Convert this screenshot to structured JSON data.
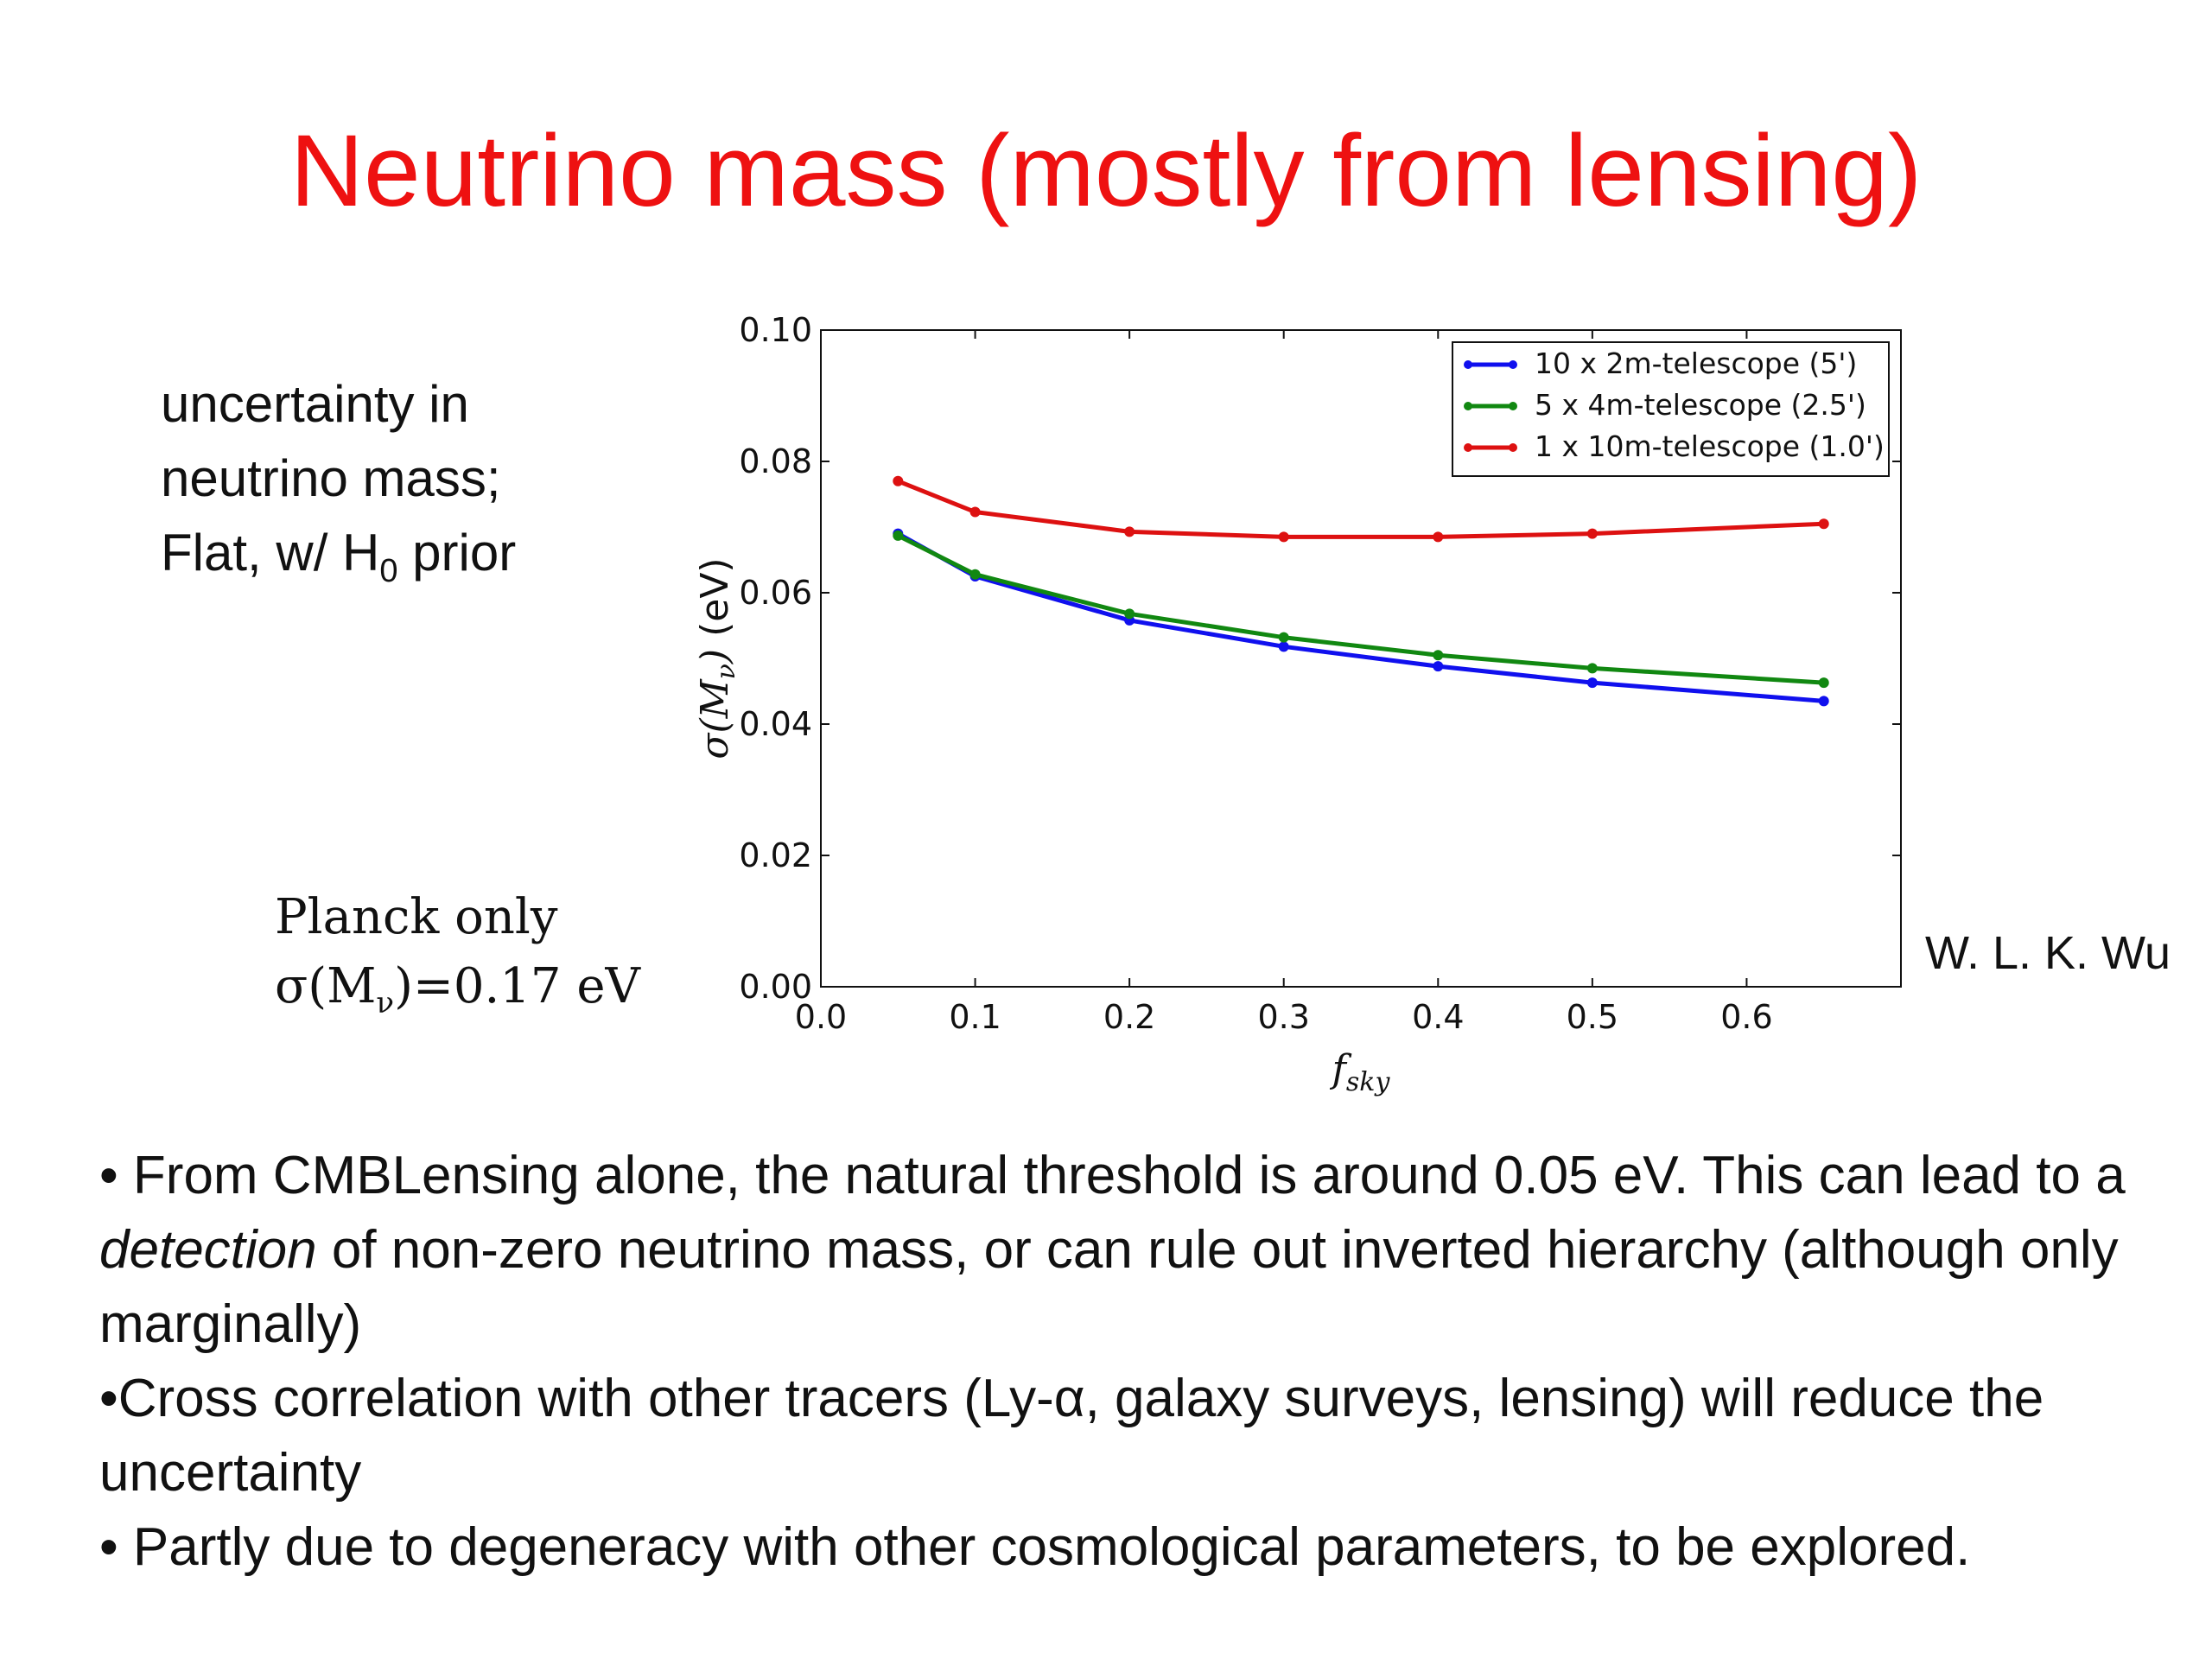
{
  "slide": {
    "title": "Neutrino mass (mostly from lensing)",
    "side_text": {
      "line1": "uncertainty in",
      "line2": "neutrino mass;",
      "line3_pre": "Flat, w/ H",
      "line3_sub": "0",
      "line3_post": " prior"
    },
    "planck": {
      "line1": "Planck only",
      "line2_pre": "σ(M",
      "line2_sub": "ν",
      "line2_post": ")=0.17 eV"
    },
    "credit": "W. L. K. Wu",
    "bullets": {
      "b1_pre": "• From CMBLensing alone, the natural threshold is around 0.05 eV.  This can lead to a ",
      "b1_em": "detection",
      "b1_post": " of non-zero neutrino mass, or can rule out inverted hierarchy (although only marginally)",
      "b2": "•Cross correlation with other tracers (Ly-α, galaxy surveys, lensing) will reduce the uncertainty",
      "b3": "• Partly due to degeneracy with other cosmological parameters, to be explored."
    }
  },
  "chart_data": {
    "type": "line",
    "xlabel": "f_sky",
    "ylabel": "σ(M_ν) (eV)",
    "xlim": [
      0.0,
      0.7
    ],
    "ylim": [
      0.0,
      0.1
    ],
    "xticks": [
      "0.0",
      "0.1",
      "0.2",
      "0.3",
      "0.4",
      "0.5",
      "0.6"
    ],
    "yticks": [
      "0.00",
      "0.02",
      "0.04",
      "0.06",
      "0.08",
      "0.10"
    ],
    "legend_position": "top-right",
    "x": [
      0.05,
      0.1,
      0.2,
      0.3,
      0.4,
      0.5,
      0.65
    ],
    "series": [
      {
        "name": "10 x 2m-telescope (5')",
        "color": "#1010ee",
        "values": [
          0.069,
          0.0625,
          0.0558,
          0.0518,
          0.0488,
          0.0463,
          0.0435
        ]
      },
      {
        "name": "5 x 4m-telescope (2.5')",
        "color": "#118811",
        "values": [
          0.0687,
          0.0628,
          0.0568,
          0.0532,
          0.0505,
          0.0485,
          0.0463
        ]
      },
      {
        "name": "1 x 10m-telescope (1.0')",
        "color": "#dd1111",
        "values": [
          0.077,
          0.0723,
          0.0693,
          0.0685,
          0.0685,
          0.069,
          0.0705
        ]
      }
    ]
  }
}
